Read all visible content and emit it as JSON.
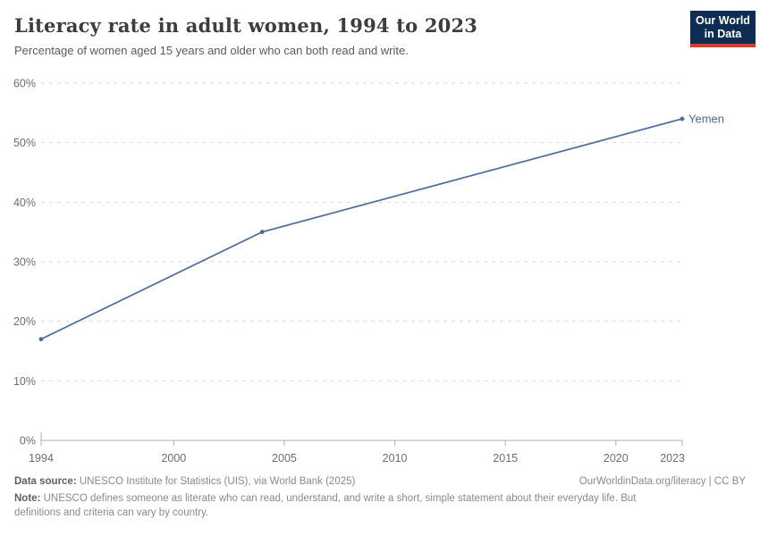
{
  "header": {
    "title": "Literacy rate in adult women, 1994 to 2023",
    "subtitle": "Percentage of women aged 15 years and older who can both read and write."
  },
  "logo": {
    "line1": "Our World",
    "line2": "in Data",
    "bg_color": "#0f2d52",
    "accent_color": "#d73c2c"
  },
  "chart_data": {
    "type": "line",
    "title": "Literacy rate in adult women, 1994 to 2023",
    "xlabel": "",
    "ylabel": "",
    "xlim": [
      1994,
      2023
    ],
    "ylim": [
      0,
      60
    ],
    "x_ticks": [
      1994,
      2000,
      2005,
      2010,
      2015,
      2020,
      2023
    ],
    "y_ticks": [
      0,
      10,
      20,
      30,
      40,
      50,
      60
    ],
    "y_tick_suffix": "%",
    "grid": "dashed-horizontal",
    "legend": "end-of-line-label",
    "colors": {
      "line": "#4c6a9c",
      "grid": "#d9d9d9",
      "axis": "#b0b0b0",
      "tick_text": "#6e6e6e"
    },
    "series": [
      {
        "name": "Yemen",
        "color": "#4c6a9c",
        "points": [
          {
            "x": 1994,
            "y": 17
          },
          {
            "x": 2004,
            "y": 35
          },
          {
            "x": 2023,
            "y": 54
          }
        ]
      }
    ]
  },
  "footer": {
    "data_source_label": "Data source:",
    "data_source": "UNESCO Institute for Statistics (UIS), via World Bank (2025)",
    "link": "OurWorldinData.org/literacy | CC BY",
    "note_label": "Note:",
    "note": "UNESCO defines someone as literate who can read, understand, and write a short, simple statement about their everyday life. But definitions and criteria can vary by country."
  }
}
